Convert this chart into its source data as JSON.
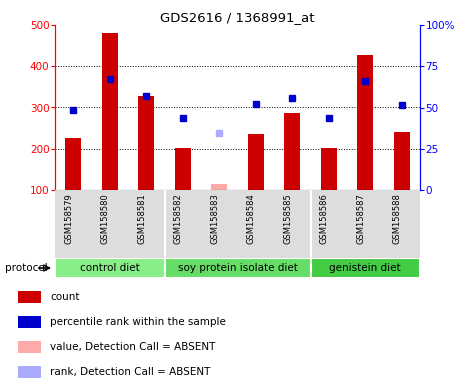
{
  "title": "GDS2616 / 1368991_at",
  "samples": [
    "GSM158579",
    "GSM158580",
    "GSM158581",
    "GSM158582",
    "GSM158583",
    "GSM158584",
    "GSM158585",
    "GSM158586",
    "GSM158587",
    "GSM158588"
  ],
  "bar_values": [
    226,
    480,
    328,
    201,
    null,
    235,
    287,
    201,
    428,
    241
  ],
  "bar_absent_values": [
    null,
    null,
    null,
    null,
    115,
    null,
    null,
    null,
    null,
    null
  ],
  "percentile_values": [
    295,
    370,
    328,
    275,
    null,
    308,
    323,
    275,
    365,
    305
  ],
  "percentile_absent_values": [
    null,
    null,
    null,
    null,
    238,
    null,
    null,
    null,
    null,
    null
  ],
  "bar_color": "#cc0000",
  "bar_absent_color": "#ffaaaa",
  "dot_color": "#0000cc",
  "dot_absent_color": "#aaaaff",
  "ylim_left": [
    100,
    500
  ],
  "ylim_right": [
    0,
    100
  ],
  "left_yticks": [
    100,
    200,
    300,
    400,
    500
  ],
  "right_yticks": [
    0,
    25,
    50,
    75,
    100
  ],
  "right_yticklabels": [
    "0",
    "25",
    "50",
    "75",
    "100%"
  ],
  "grid_lines": [
    200,
    300,
    400
  ],
  "groups": [
    {
      "label": "control diet",
      "start": 0,
      "end": 3,
      "color": "#88ee88"
    },
    {
      "label": "soy protein isolate diet",
      "start": 3,
      "end": 7,
      "color": "#66dd66"
    },
    {
      "label": "genistein diet",
      "start": 7,
      "end": 10,
      "color": "#44cc44"
    }
  ],
  "protocol_label": "protocol",
  "legend_items": [
    {
      "color": "#cc0000",
      "label": "count"
    },
    {
      "color": "#0000cc",
      "label": "percentile rank within the sample"
    },
    {
      "color": "#ffaaaa",
      "label": "value, Detection Call = ABSENT"
    },
    {
      "color": "#aaaaff",
      "label": "rank, Detection Call = ABSENT"
    }
  ],
  "bg_color": "#dddddd",
  "chart_bg": "#ffffff",
  "group_sep_color": "#000000",
  "bar_width": 0.45
}
